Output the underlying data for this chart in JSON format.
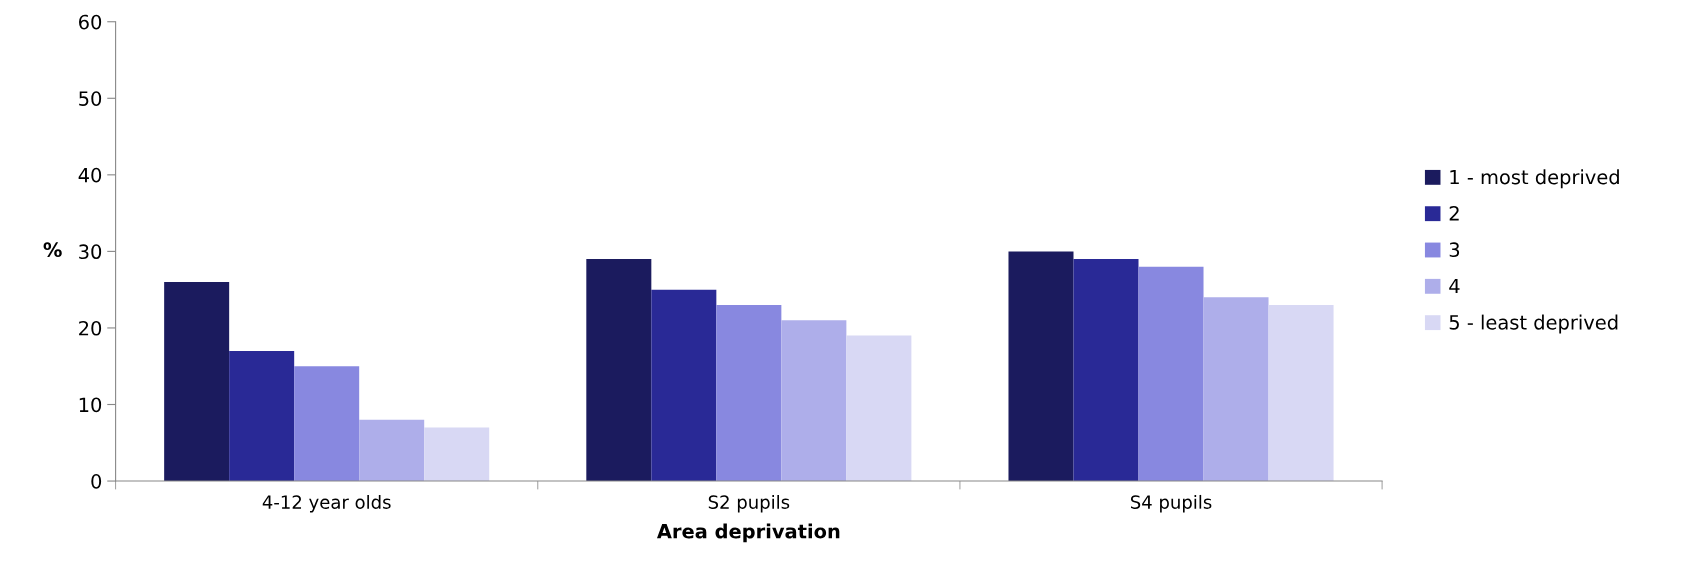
{
  "chart_data": {
    "type": "bar",
    "xlabel": "Area deprivation",
    "ylabel": "%",
    "categories": [
      "4-12 year olds",
      "S2 pupils",
      "S4 pupils"
    ],
    "series": [
      {
        "name": "1 - most deprived",
        "color": "#1b1b5e",
        "values": [
          26,
          29,
          30
        ]
      },
      {
        "name": "2",
        "color": "#292996",
        "values": [
          17,
          25,
          29
        ]
      },
      {
        "name": "3",
        "color": "#8888e0",
        "values": [
          15,
          23,
          28
        ]
      },
      {
        "name": "4",
        "color": "#aeaeea",
        "values": [
          8,
          21,
          24
        ]
      },
      {
        "name": "5 - least deprived",
        "color": "#d8d8f4",
        "values": [
          7,
          19,
          23
        ]
      }
    ],
    "ylim": [
      0,
      60
    ],
    "yticks": [
      0,
      10,
      20,
      30,
      40,
      50,
      60
    ],
    "grid": false,
    "legend": "right"
  }
}
